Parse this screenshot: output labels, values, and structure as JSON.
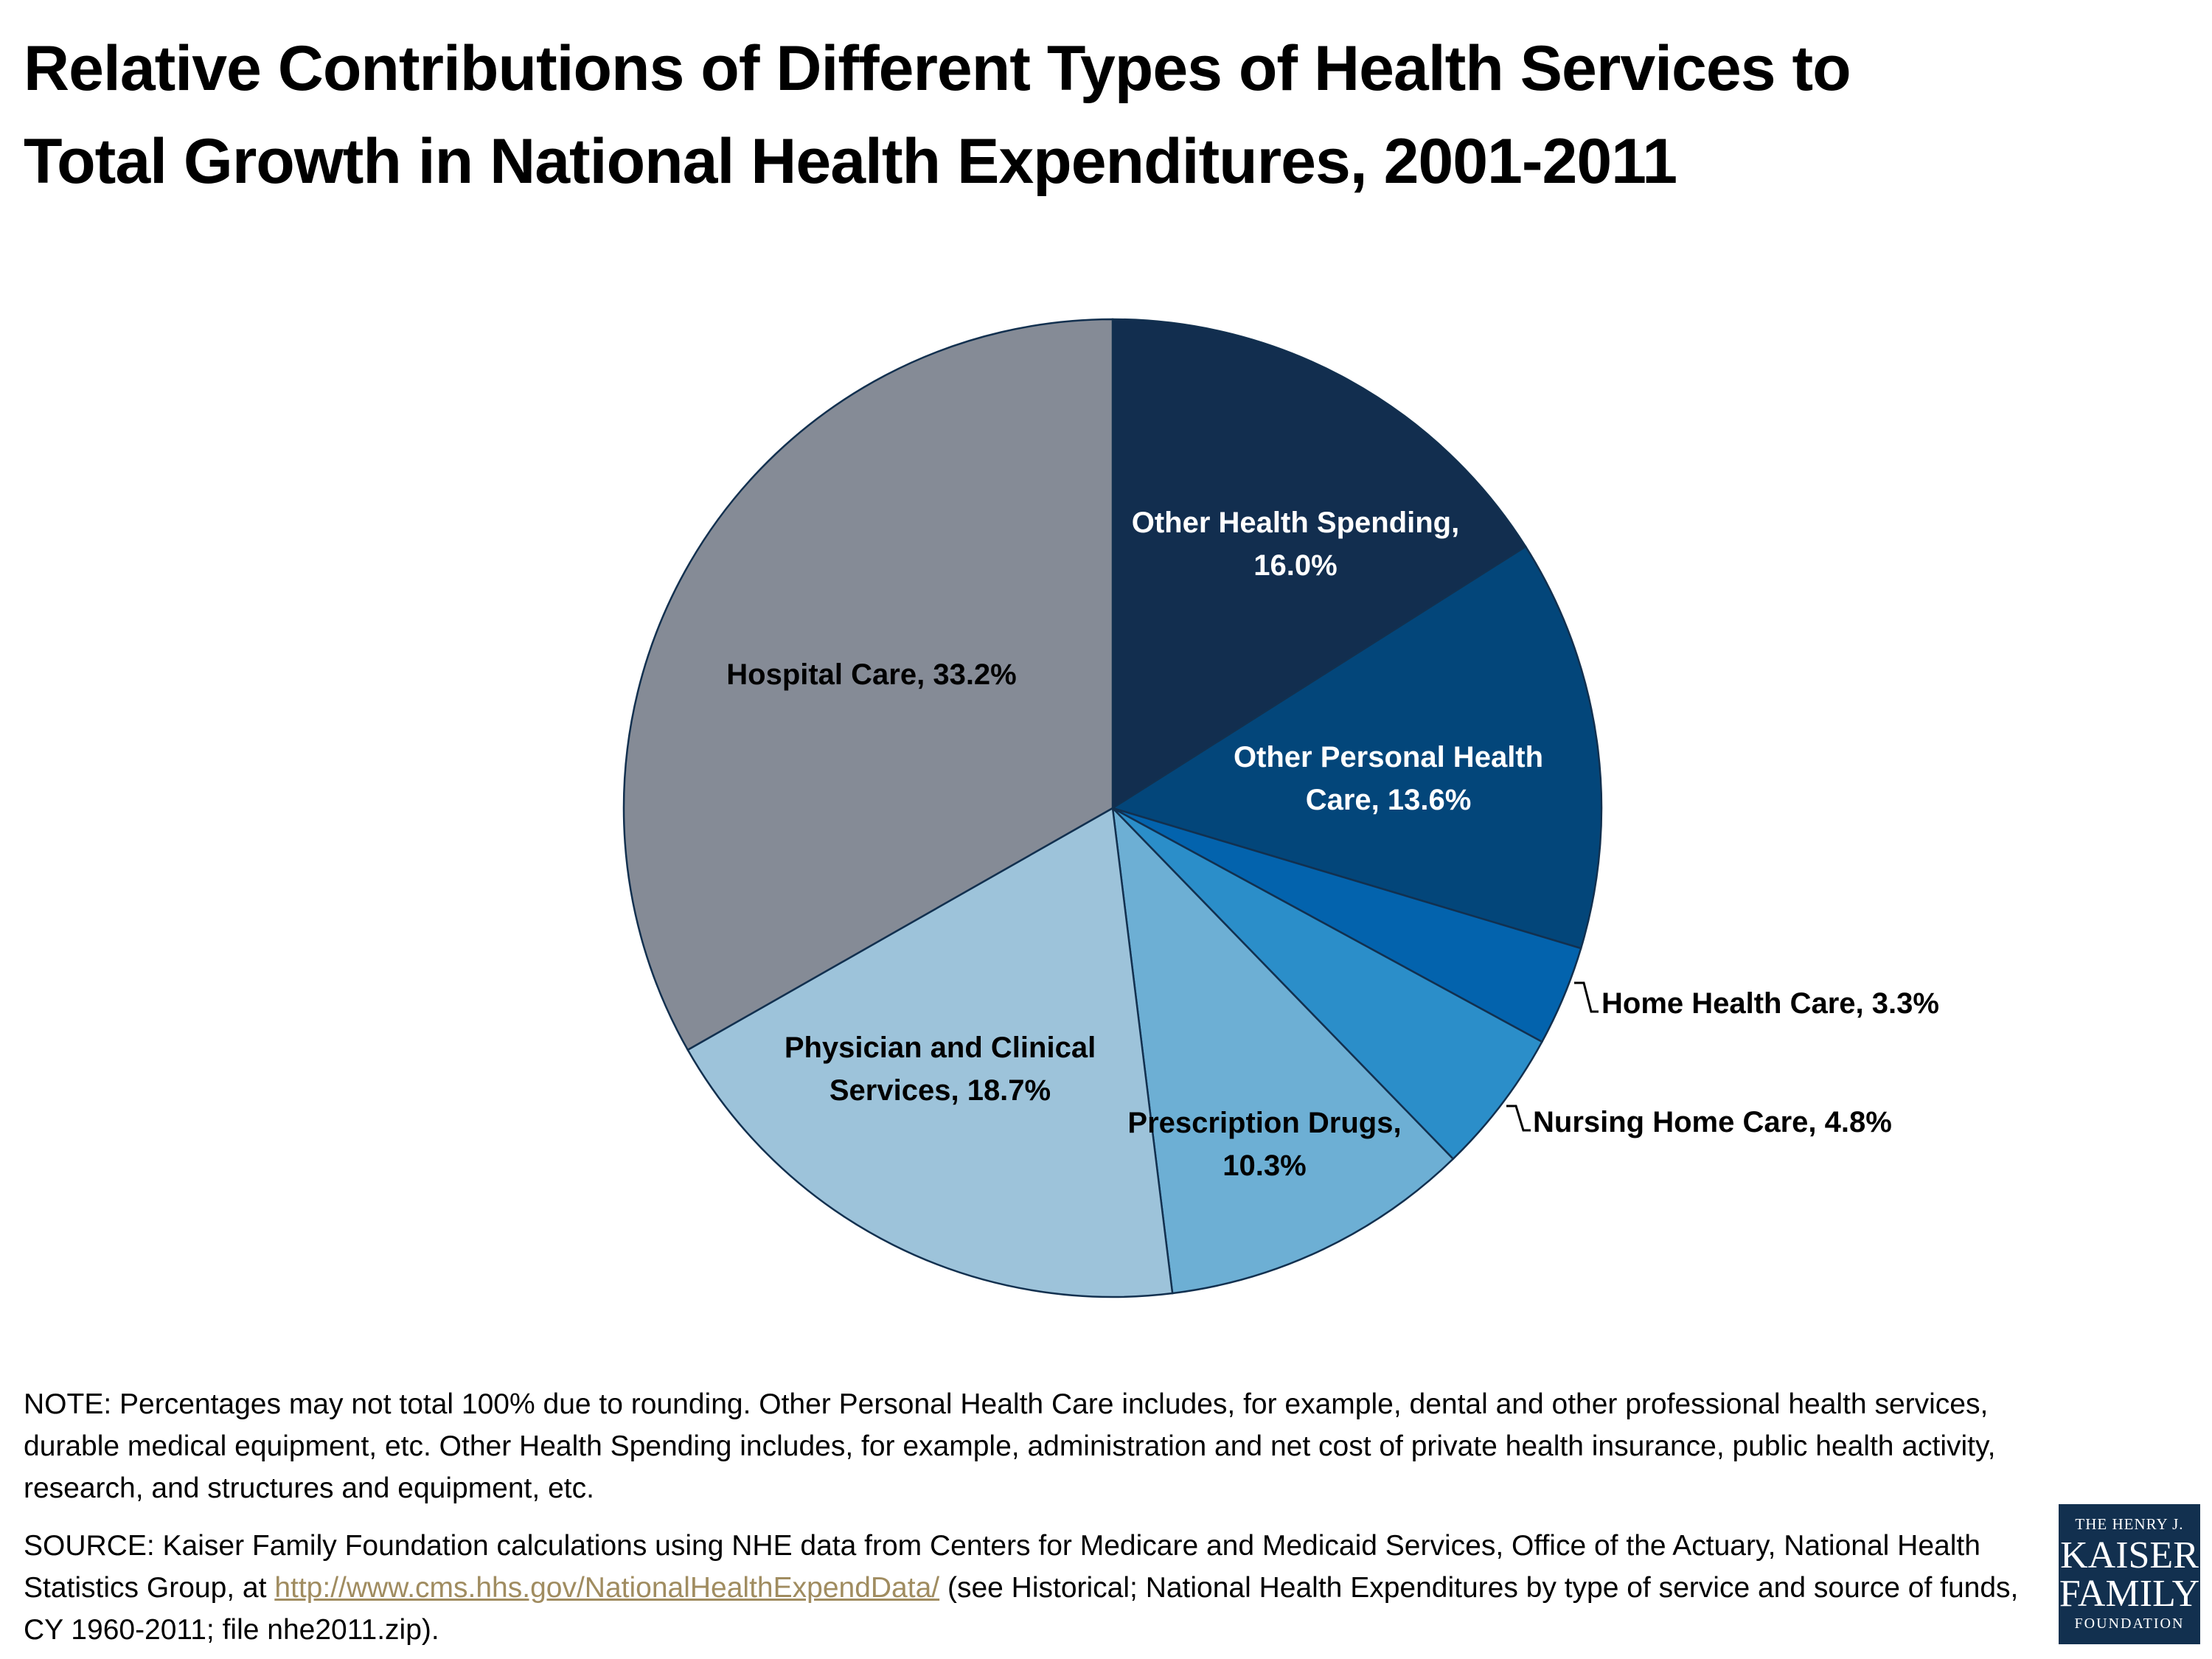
{
  "chart_data": {
    "type": "pie",
    "title_line1": "Relative Contributions of Different Types of Health Services to",
    "title_line2": "Total Growth in National Health Expenditures, 2001-2011",
    "slices": [
      {
        "label": "Other Health Spending,",
        "label2": "16.0%",
        "value": 16.0,
        "color": "#122e4f",
        "text_color": "#ffffff"
      },
      {
        "label": "Other Personal Health",
        "label2": "Care, 13.6%",
        "value": 13.6,
        "color": "#03467a",
        "text_color": "#ffffff"
      },
      {
        "label": "Home Health Care, 3.3%",
        "label2": "",
        "value": 3.3,
        "color": "#0363ad",
        "text_color": "#000000"
      },
      {
        "label": "Nursing Home Care, 4.8%",
        "label2": "",
        "value": 4.8,
        "color": "#2b8ec9",
        "text_color": "#000000"
      },
      {
        "label": "Prescription Drugs,",
        "label2": "10.3%",
        "value": 10.3,
        "color": "#6dafd4",
        "text_color": "#000000"
      },
      {
        "label": "Physician and Clinical",
        "label2": "Services, 18.7%",
        "value": 18.7,
        "color": "#9dc3da",
        "text_color": "#000000"
      },
      {
        "label": "Hospital Care, 33.2%",
        "label2": "",
        "value": 33.2,
        "color": "#858b96",
        "text_color": "#000000"
      }
    ]
  },
  "note": "NOTE: Percentages may not total 100% due to rounding. Other Personal Health Care includes, for example, dental and other professional health services, durable medical equipment, etc. Other Health Spending includes, for example, administration and net cost of private health insurance, public health activity, research, and structures and equipment, etc.",
  "source": {
    "before": "SOURCE: Kaiser Family Foundation calculations using NHE data from Centers for Medicare and Medicaid Services, Office of the Actuary, National Health Statistics Group, at ",
    "link": "http://www.cms.hhs.gov/NationalHealthExpendData/",
    "after": " (see Historical; National Health Expenditures by type of service and source of funds, CY 1960-2011; file nhe2011.zip)."
  },
  "logo": {
    "line1": "THE HENRY J.",
    "line2": "KAISER",
    "line3": "FAMILY",
    "line4": "FOUNDATION"
  }
}
